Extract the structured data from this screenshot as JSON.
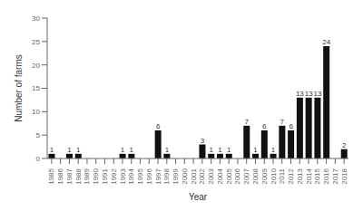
{
  "chart_data": {
    "type": "bar",
    "categories": [
      "1985",
      "1986",
      "1987",
      "1988",
      "1989",
      "1990",
      "1991",
      "1992",
      "1993",
      "1994",
      "1995",
      "1996",
      "1997",
      "1998",
      "1999",
      "2000",
      "2001",
      "2002",
      "2003",
      "2004",
      "2005",
      "2006",
      "2007",
      "2008",
      "2009",
      "2010",
      "2011",
      "2012",
      "2013",
      "2014",
      "2015",
      "2016",
      "2017",
      "2018"
    ],
    "values": [
      1,
      0,
      1,
      1,
      0,
      0,
      0,
      0,
      1,
      1,
      0,
      0,
      6,
      1,
      0,
      0,
      0,
      3,
      1,
      1,
      1,
      0,
      7,
      1,
      6,
      1,
      7,
      6,
      13,
      13,
      13,
      24,
      0,
      2
    ],
    "color": "#111111",
    "xlabel": "Year",
    "ylabel": "Number of farms",
    "ylim": [
      0,
      30
    ],
    "yticks": [
      0,
      5,
      10,
      15,
      20,
      25,
      30
    ],
    "grid": false,
    "data_labels": true
  }
}
